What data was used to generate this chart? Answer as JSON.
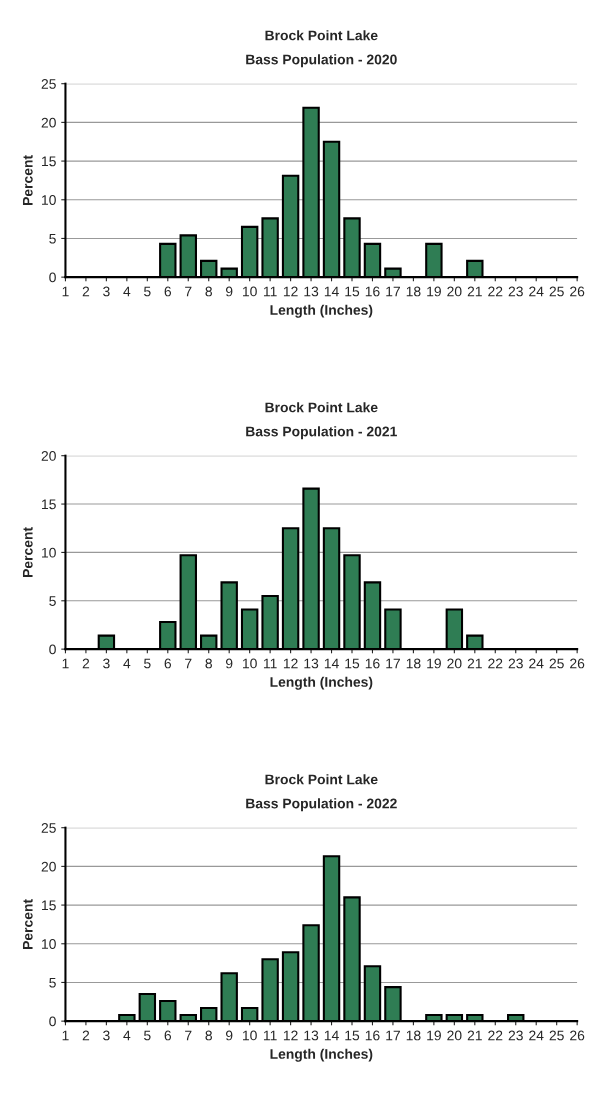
{
  "chart_data": [
    {
      "type": "bar",
      "title": "Brock Point Lake",
      "subtitle": "Bass Population - 2020",
      "xlabel": "Length (Inches)",
      "ylabel": "Percent",
      "x": [
        6,
        7,
        8,
        9,
        10,
        11,
        12,
        13,
        14,
        15,
        16,
        17,
        19,
        21
      ],
      "values": [
        4.3,
        5.4,
        2.1,
        1.1,
        6.5,
        7.6,
        13.1,
        21.9,
        17.5,
        7.6,
        4.3,
        1.1,
        4.3,
        2.1
      ],
      "color": "#2f7d54",
      "xlim": [
        1,
        26
      ],
      "xticks": [
        1,
        2,
        3,
        4,
        5,
        6,
        7,
        8,
        9,
        10,
        11,
        12,
        13,
        14,
        15,
        16,
        17,
        18,
        19,
        20,
        21,
        22,
        23,
        24,
        25,
        26
      ],
      "ylim": [
        0,
        25
      ],
      "yticks": [
        0,
        5,
        10,
        15,
        20,
        25
      ],
      "grid": "y"
    },
    {
      "type": "bar",
      "title": "Brock Point Lake",
      "subtitle": "Bass Population - 2021",
      "xlabel": "Length (Inches)",
      "ylabel": "Percent",
      "x": [
        3,
        6,
        7,
        8,
        9,
        10,
        11,
        12,
        13,
        14,
        15,
        16,
        17,
        20,
        21
      ],
      "values": [
        1.4,
        2.8,
        9.7,
        1.4,
        6.9,
        4.1,
        5.5,
        12.5,
        16.6,
        12.5,
        9.7,
        6.9,
        4.1,
        4.1,
        1.4
      ],
      "color": "#2f7d54",
      "xlim": [
        1,
        26
      ],
      "xticks": [
        1,
        2,
        3,
        4,
        5,
        6,
        7,
        8,
        9,
        10,
        11,
        12,
        13,
        14,
        15,
        16,
        17,
        18,
        19,
        20,
        21,
        22,
        23,
        24,
        25,
        26
      ],
      "ylim": [
        0,
        20
      ],
      "yticks": [
        0,
        5,
        10,
        15,
        20
      ],
      "grid": "y"
    },
    {
      "type": "bar",
      "title": "Brock Point Lake",
      "subtitle": "Bass Population - 2022",
      "xlabel": "Length (Inches)",
      "ylabel": "Percent",
      "x": [
        4,
        5,
        6,
        7,
        8,
        9,
        10,
        11,
        12,
        13,
        14,
        15,
        16,
        17,
        19,
        20,
        21,
        23
      ],
      "values": [
        0.8,
        3.5,
        2.6,
        0.8,
        1.7,
        6.2,
        1.7,
        8.0,
        8.9,
        12.4,
        21.3,
        16.0,
        7.1,
        4.4,
        0.8,
        0.8,
        0.8,
        0.8
      ],
      "color": "#2f7d54",
      "xlim": [
        1,
        26
      ],
      "xticks": [
        1,
        2,
        3,
        4,
        5,
        6,
        7,
        8,
        9,
        10,
        11,
        12,
        13,
        14,
        15,
        16,
        17,
        18,
        19,
        20,
        21,
        22,
        23,
        24,
        25,
        26
      ],
      "ylim": [
        0,
        25
      ],
      "yticks": [
        0,
        5,
        10,
        15,
        20,
        25
      ],
      "grid": "y"
    }
  ]
}
